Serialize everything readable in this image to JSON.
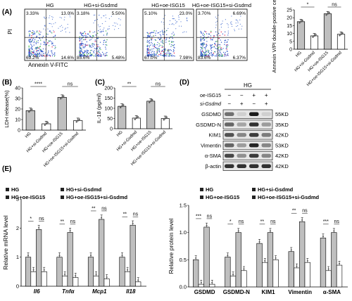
{
  "panels": {
    "A": "(A)",
    "B": "(B)",
    "C": "(C)",
    "D": "(D)",
    "E": "(E)"
  },
  "flow": {
    "titles": [
      "HG",
      "HG+si-Gsdmd",
      "HG+oe-ISG15",
      "HG+oe-ISG15+si-Gsdmd"
    ],
    "quadrants": [
      [
        "3.33%",
        "13.0%",
        "69.2%",
        "14.6%"
      ],
      [
        "3.18%",
        "5.50%",
        "85.6%",
        "5.48%"
      ],
      [
        "5.10%",
        "23.0%",
        "67.0%",
        "7.98%"
      ],
      [
        "3.70%",
        "6.69%",
        "83.6%",
        "6.37%"
      ]
    ],
    "ylabel": "PI",
    "xlabel": "Annexin V-FITC"
  },
  "labels": {
    "sig_star": "*",
    "sig_2star": "**",
    "sig_3star": "***",
    "sig_4star": "****",
    "ns": "ns"
  },
  "western": {
    "hg_label": "HG",
    "oe_label": "oe-ISG15",
    "si_label": "si-Gsdmd",
    "oe_signs": [
      "−",
      "−",
      "+",
      "+"
    ],
    "si_signs": [
      "−",
      "+",
      "−",
      "+"
    ],
    "proteins": [
      "GSDMD",
      "GSDMD-N",
      "KIM1",
      "Vimentin",
      "α-SMA",
      "β-actin"
    ],
    "sizes": [
      "55KD",
      "35KD",
      "42KD",
      "53KD",
      "42KD",
      "42KD"
    ]
  },
  "colors": {
    "group_fills": [
      "#bfbfbf",
      "#ffffff",
      "#bfbfbf",
      "#ffffff"
    ]
  },
  "legend_groups": [
    "HG",
    "HG+si-Gsdmd",
    "HG+oe-ISG15",
    "HG+oe-ISG15+si-Gsdmd"
  ],
  "chart_data": [
    {
      "id": "A-bar",
      "type": "bar",
      "ylabel": "Annexin V/PI double-postive cells(%)",
      "ylim": [
        0,
        25
      ],
      "yticks": [
        0,
        5,
        10,
        15,
        20,
        25
      ],
      "categories": [
        "HG",
        "HG+si-Gsdmd",
        "HG+oe-ISG15",
        "HG+oe-ISG15+si-Gsdmd"
      ],
      "values": [
        17.5,
        8.5,
        22.5,
        9.5
      ]
    },
    {
      "id": "B",
      "type": "bar",
      "ylabel": "LDH release(%)",
      "ylim": [
        0,
        40
      ],
      "yticks": [
        0,
        10,
        20,
        30,
        40
      ],
      "categories": [
        "HG",
        "HG+si-Gsdmd",
        "HG+oe-ISG15",
        "HG+oe-ISG15+si-Gsdmd"
      ],
      "values": [
        18.5,
        6,
        31,
        9
      ]
    },
    {
      "id": "C",
      "type": "bar",
      "ylabel": "IL-18 (pg/ml)",
      "ylim": [
        0,
        200
      ],
      "yticks": [
        0,
        50,
        100,
        150,
        200
      ],
      "categories": [
        "HG",
        "HG+si-Gsdmd",
        "HG+oe-ISG15",
        "HG+oe-ISG15+si-Gsdmd"
      ],
      "values": [
        110,
        52,
        135,
        50
      ]
    },
    {
      "id": "E-mRNA",
      "type": "bar",
      "ylabel": "Relative mRNA level",
      "ylim": [
        0,
        3
      ],
      "yticks": [
        0,
        1,
        2,
        3
      ],
      "categories": [
        "Il6",
        "Tnfα",
        "Mcp1",
        "Il18"
      ],
      "series": [
        {
          "name": "HG",
          "values": [
            1.0,
            1.0,
            1.0,
            1.0
          ]
        },
        {
          "name": "HG+si-Gsdmd",
          "values": [
            0.5,
            0.35,
            0.35,
            0.5
          ]
        },
        {
          "name": "HG+oe-ISG15",
          "values": [
            1.95,
            1.85,
            2.3,
            2.1
          ]
        },
        {
          "name": "HG+oe-ISG15+si-Gsdmd",
          "values": [
            0.5,
            0.3,
            0.25,
            0.15
          ]
        }
      ]
    },
    {
      "id": "E-protein",
      "type": "bar",
      "ylabel": "Relative protein level",
      "ylim": [
        0,
        1.5
      ],
      "yticks": [
        0.0,
        0.5,
        1.0,
        1.5
      ],
      "categories": [
        "GSDMD",
        "GSDMD-N",
        "KIM1",
        "Vimentin",
        "α-SMA"
      ],
      "series": [
        {
          "name": "HG",
          "values": [
            0.5,
            0.55,
            0.8,
            0.65,
            0.9
          ]
        },
        {
          "name": "HG+si-Gsdmd",
          "values": [
            0.05,
            0.2,
            0.45,
            0.35,
            0.3
          ]
        },
        {
          "name": "HG+oe-ISG15",
          "values": [
            1.1,
            1.0,
            1.0,
            1.2,
            1.0
          ]
        },
        {
          "name": "HG+oe-ISG15+si-Gsdmd",
          "values": [
            0.05,
            0.3,
            0.5,
            0.45,
            0.4
          ]
        }
      ]
    }
  ]
}
